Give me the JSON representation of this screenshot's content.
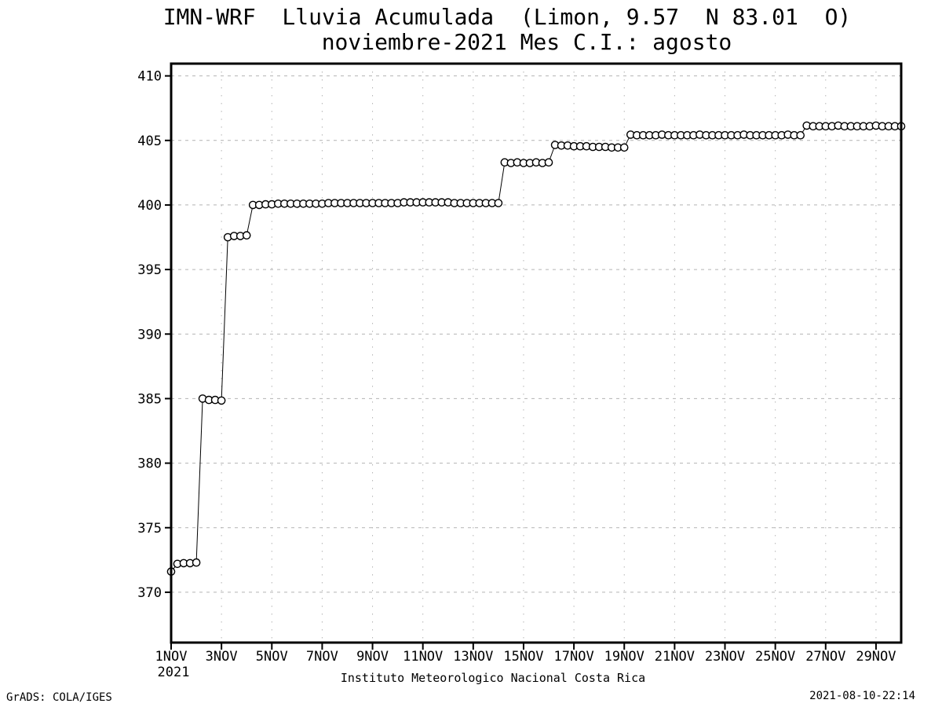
{
  "title": {
    "line1": "IMN-WRF  Lluvia Acumulada  (Limon, 9.57  N 83.01  O)",
    "line2": "noviembre-2021 Mes C.I.: agosto"
  },
  "footer": {
    "caption": "Instituto Meteorologico Nacional Costa Rica",
    "credit": "GrADS: COLA/IGES",
    "timestamp": "2021-08-10-22:14"
  },
  "chart_data": {
    "type": "line",
    "marker": "open-circle",
    "title": "IMN-WRF Lluvia Acumulada (Limon, 9.57 N 83.01 O) noviembre-2021 Mes C.I.: agosto",
    "xlabel": "",
    "ylabel": "",
    "legend": "none",
    "grid": "on",
    "x_axis": {
      "year": "2021",
      "tick_labels": [
        "1NOV",
        "3NOV",
        "5NOV",
        "7NOV",
        "9NOV",
        "11NOV",
        "13NOV",
        "15NOV",
        "17NOV",
        "19NOV",
        "21NOV",
        "23NOV",
        "25NOV",
        "27NOV",
        "29NOV"
      ],
      "tick_days": [
        0,
        2,
        4,
        6,
        8,
        10,
        12,
        14,
        16,
        18,
        20,
        22,
        24,
        26,
        28
      ],
      "range_days": [
        0,
        29
      ]
    },
    "y_axis": {
      "ticks": [
        370,
        375,
        380,
        385,
        390,
        395,
        400,
        405,
        410
      ],
      "range": [
        366.1,
        410.95
      ]
    },
    "series": [
      {
        "name": "lluvia-acumulada-mm",
        "t_start_days": 0,
        "t_step_days": 0.25,
        "values": [
          371.6,
          372.2,
          372.25,
          372.25,
          372.3,
          385.0,
          384.9,
          384.9,
          384.85,
          397.5,
          397.6,
          397.6,
          397.65,
          400.0,
          400.0,
          400.05,
          400.05,
          400.1,
          400.1,
          400.1,
          400.1,
          400.1,
          400.1,
          400.1,
          400.1,
          400.15,
          400.15,
          400.15,
          400.15,
          400.15,
          400.15,
          400.15,
          400.15,
          400.15,
          400.15,
          400.15,
          400.15,
          400.2,
          400.2,
          400.2,
          400.2,
          400.2,
          400.2,
          400.2,
          400.2,
          400.15,
          400.15,
          400.15,
          400.15,
          400.15,
          400.15,
          400.15,
          400.15,
          403.3,
          403.25,
          403.3,
          403.25,
          403.25,
          403.3,
          403.25,
          403.3,
          404.65,
          404.6,
          404.6,
          404.55,
          404.55,
          404.55,
          404.5,
          404.5,
          404.5,
          404.45,
          404.45,
          404.45,
          405.45,
          405.4,
          405.4,
          405.4,
          405.4,
          405.45,
          405.4,
          405.4,
          405.4,
          405.4,
          405.4,
          405.45,
          405.4,
          405.4,
          405.4,
          405.4,
          405.4,
          405.4,
          405.45,
          405.4,
          405.4,
          405.4,
          405.4,
          405.4,
          405.4,
          405.45,
          405.4,
          405.4,
          406.15,
          406.1,
          406.1,
          406.1,
          406.1,
          406.15,
          406.1,
          406.1,
          406.1,
          406.1,
          406.1,
          406.15,
          406.1,
          406.1,
          406.1,
          406.1
        ]
      }
    ],
    "colors": {
      "line": "#000000",
      "marker_stroke": "#000000",
      "marker_fill": "#ffffff",
      "grid": "#b4b4b4",
      "frame": "#000000",
      "background": "#ffffff"
    }
  }
}
